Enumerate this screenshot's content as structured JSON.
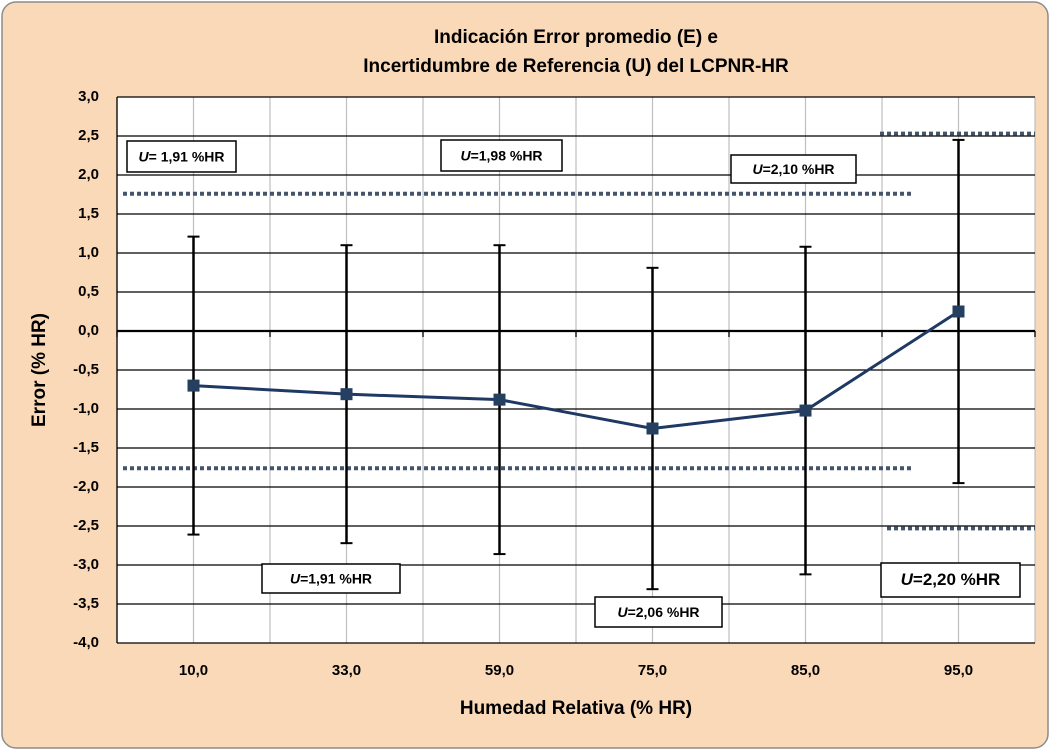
{
  "chart_data": {
    "type": "line",
    "title": [
      "Indicación Error promedio (E) e",
      "Incertidumbre de Referencia (U) del LCPNR-HR"
    ],
    "x_label": "Humedad Relativa (% HR)",
    "y_label": "Error  (% HR)",
    "categories": [
      "10,0",
      "33,0",
      "59,0",
      "75,0",
      "85,0",
      "95,0"
    ],
    "series": [
      {
        "color": "#1f3864",
        "values": [
          -0.7,
          -0.81,
          -0.88,
          -1.25,
          -1.02,
          0.25
        ],
        "errors": [
          1.91,
          1.91,
          1.98,
          2.06,
          2.1,
          2.2
        ]
      }
    ],
    "ylim": [
      -4,
      3
    ],
    "yticks": [
      {
        "value": 3,
        "label": "3,0"
      },
      {
        "value": 2.5,
        "label": "2,5"
      },
      {
        "value": 2,
        "label": "2,0"
      },
      {
        "value": 1.5,
        "label": "1,5"
      },
      {
        "value": 1,
        "label": "1,0"
      },
      {
        "value": 0.5,
        "label": "0,5"
      },
      {
        "value": 0,
        "label": "0,0"
      },
      {
        "value": -0.5,
        "label": "-0,5"
      },
      {
        "value": -1,
        "label": "-1,0"
      },
      {
        "value": -1.5,
        "label": "-1,5"
      },
      {
        "value": -2,
        "label": "-2,0"
      },
      {
        "value": -2.5,
        "label": "-2,5"
      },
      {
        "value": -3,
        "label": "-3,0"
      },
      {
        "value": -3.5,
        "label": "-3,5"
      },
      {
        "value": -4,
        "label": "-4,0"
      }
    ],
    "grid": true,
    "limit_lines": [
      {
        "color": "#44546a",
        "values": [
          1.76,
          -1.76
        ]
      },
      {
        "color": "#44546a",
        "values": [
          2.53,
          -2.53
        ]
      }
    ],
    "annotations": [
      {
        "symbol": "U",
        "text": "= 1,91 %HR"
      },
      {
        "symbol": "U",
        "text": "=1,98 %HR"
      },
      {
        "symbol": "U",
        "text": "=2,10 %HR"
      },
      {
        "symbol": "U",
        "text": "=1,91 %HR"
      },
      {
        "symbol": "U",
        "text": "=2,06 %HR"
      },
      {
        "symbol": "U",
        "text": "=2,20 %HR"
      }
    ]
  }
}
